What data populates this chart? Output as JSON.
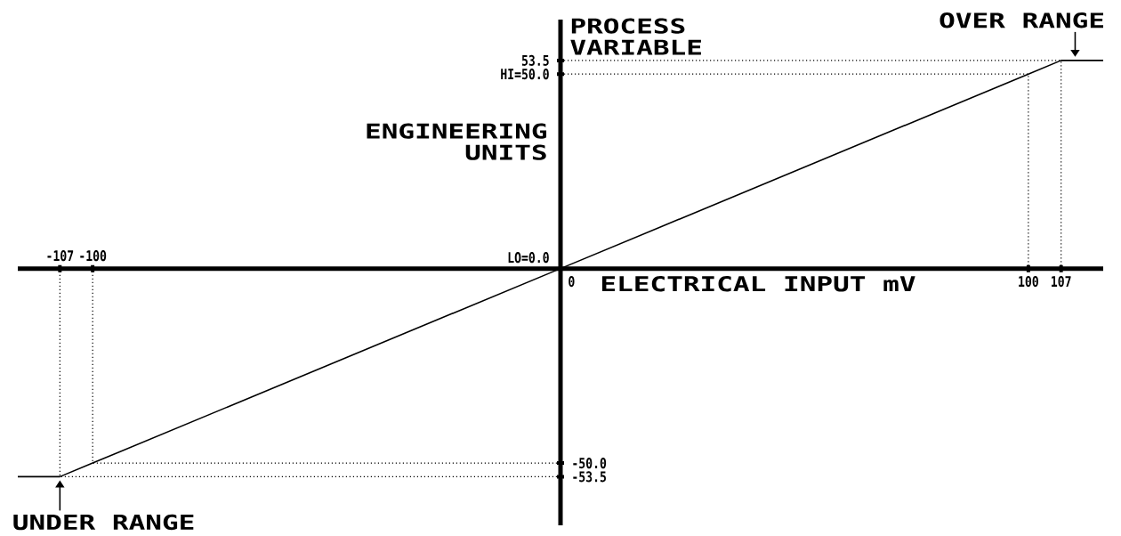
{
  "chart_data": {
    "type": "line",
    "xlabel": "ELECTRICAL INPUT mV",
    "ylabel": "ENGINEERING UNITS",
    "y2label": "PROCESS VARIABLE",
    "annotations": [
      {
        "text": "OVER RANGE",
        "x": 110,
        "y": 53.5
      },
      {
        "text": "UNDER RANGE",
        "x": -107,
        "y": -53.5
      }
    ],
    "xlim": [
      -116,
      116
    ],
    "ylim": [
      -66,
      64
    ],
    "xticks": [
      0,
      100,
      107
    ],
    "x2lim": [
      -116,
      116
    ],
    "x2ticks": [
      -107,
      -100
    ],
    "yticks": [
      53.5,
      {
        "value": 50,
        "label": "HI=50.0"
      },
      {
        "value": 0,
        "label": "LO=0.0"
      }
    ],
    "y2lim": [
      -66,
      64
    ],
    "y2ticks": [
      {
        "value": -50,
        "label": "-50.0"
      },
      {
        "value": -53.5,
        "label": "-53.5"
      }
    ],
    "series": [
      {
        "color": "#000000",
        "line_style": "solid",
        "x": [
          -116,
          -107,
          -100,
          0,
          100,
          107,
          116
        ],
        "values": [
          -53.5,
          -53.5,
          -50,
          0,
          50,
          53.5,
          53.5
        ]
      },
      {
        "color": "#000000",
        "line_style": "dotted",
        "x": [
          0,
          107,
          107
        ],
        "values": [
          53.5,
          53.5,
          0
        ]
      },
      {
        "color": "#000000",
        "line_style": "dotted",
        "x": [
          0,
          100,
          100
        ],
        "values": [
          50,
          50,
          0
        ]
      },
      {
        "color": "#000000",
        "line_style": "dotted",
        "x": [
          0,
          -100,
          -100
        ],
        "values": [
          -50,
          -50,
          0
        ]
      },
      {
        "color": "#000000",
        "line_style": "dotted",
        "x": [
          0,
          -107,
          -107
        ],
        "values": [
          -53.5,
          -53.5,
          0
        ]
      }
    ]
  }
}
